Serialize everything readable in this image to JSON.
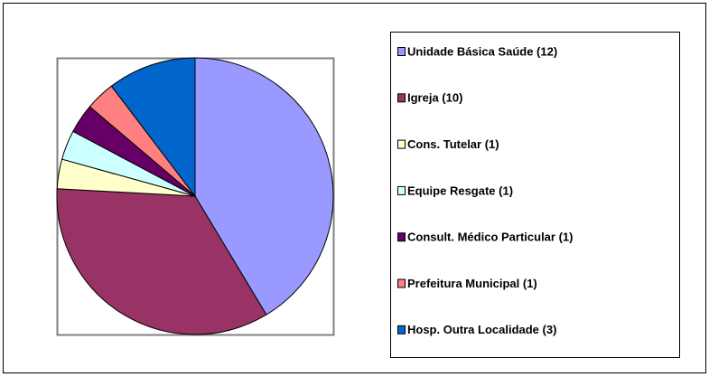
{
  "chart_data": {
    "type": "pie",
    "categories": [
      "Unidade Básica Saúde (12)",
      "Igreja (10)",
      "Cons. Tutelar (1)",
      "Equipe Resgate (1)",
      "Consult. Médico Particular (1)",
      "Prefeitura Municipal (1)",
      "Hosp. Outra Localidade (3)"
    ],
    "values": [
      12,
      10,
      1,
      1,
      1,
      1,
      3
    ],
    "colors": [
      "#9999ff",
      "#993366",
      "#ffffcc",
      "#ccffff",
      "#660066",
      "#ff8080",
      "#0066cc"
    ],
    "legend": "right"
  }
}
